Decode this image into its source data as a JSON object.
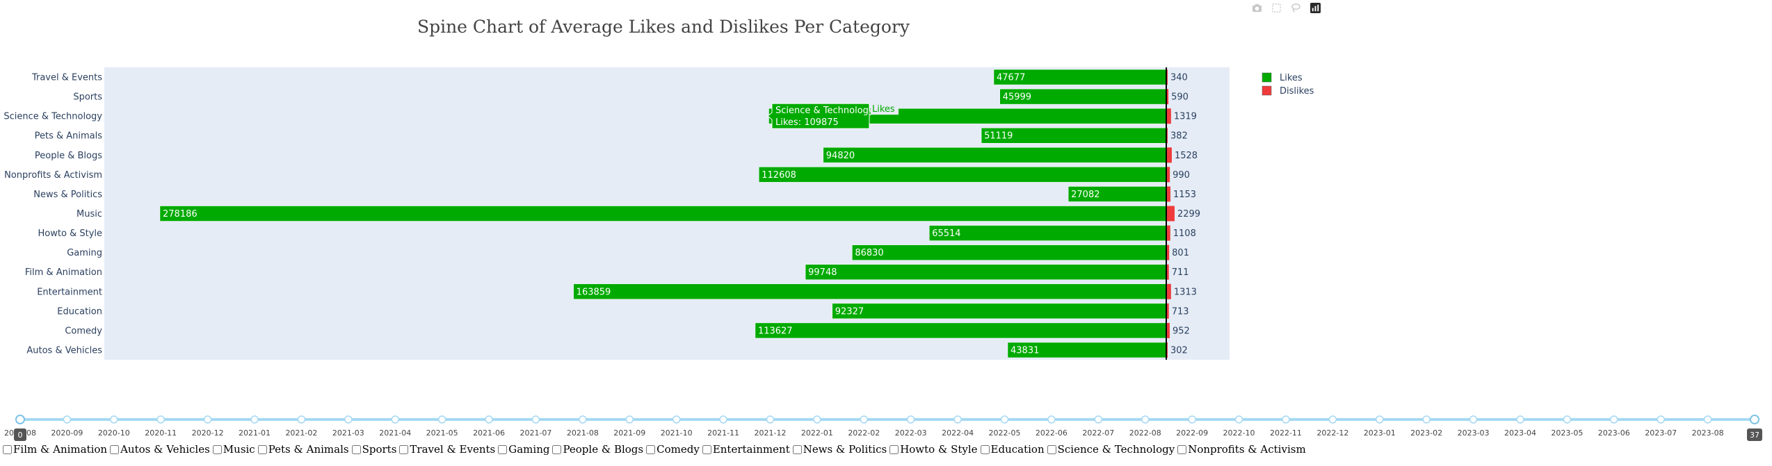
{
  "toolbar": {
    "icons": [
      "camera-icon",
      "box-select-icon",
      "lasso-icon",
      "plotly-logo-icon"
    ]
  },
  "chart_data": {
    "type": "bar",
    "orientation": "horizontal-diverging",
    "title": "Spine Chart of Average Likes and Dislikes Per Category",
    "categories": [
      "Travel & Events",
      "Sports",
      "Science & Technology",
      "Pets & Animals",
      "People & Blogs",
      "Nonprofits & Activism",
      "News & Politics",
      "Music",
      "Howto & Style",
      "Gaming",
      "Film & Animation",
      "Entertainment",
      "Education",
      "Comedy",
      "Autos & Vehicles"
    ],
    "series": [
      {
        "name": "Likes",
        "color": "#00aa00",
        "values": [
          47677,
          45999,
          109875,
          51119,
          94820,
          112608,
          27082,
          278186,
          65514,
          86830,
          99748,
          163859,
          92327,
          113627,
          43831
        ]
      },
      {
        "name": "Dislikes",
        "color": "#ef3b3b",
        "values": [
          340,
          590,
          1319,
          382,
          1528,
          990,
          1153,
          2299,
          1108,
          801,
          711,
          1313,
          713,
          952,
          302
        ]
      }
    ],
    "plot_background": "#e5ecf6",
    "legend_position": "top-right",
    "tooltip": {
      "line1": "Science & Technology",
      "line2": "Likes: 109875",
      "series_label": "Likes"
    }
  },
  "slider": {
    "labels": [
      "2020-08",
      "2020-09",
      "2020-10",
      "2020-11",
      "2020-12",
      "2021-01",
      "2021-02",
      "2021-03",
      "2021-04",
      "2021-05",
      "2021-06",
      "2021-07",
      "2021-08",
      "2021-09",
      "2021-10",
      "2021-11",
      "2021-12",
      "2022-01",
      "2022-02",
      "2022-03",
      "2022-04",
      "2022-05",
      "2022-06",
      "2022-07",
      "2022-08",
      "2022-09",
      "2022-10",
      "2022-11",
      "2022-12",
      "2023-01",
      "2023-02",
      "2023-03",
      "2023-04",
      "2023-05",
      "2023-06",
      "2023-07",
      "2023-08"
    ],
    "start_value": "0",
    "end_value": "37"
  },
  "checkboxes": [
    "Film & Animation",
    "Autos & Vehicles",
    "Music",
    "Pets & Animals",
    "Sports",
    "Travel & Events",
    "Gaming",
    "People & Blogs",
    "Comedy",
    "Entertainment",
    "News & Politics",
    "Howto & Style",
    "Education",
    "Science & Technology",
    "Nonprofits & Activism"
  ]
}
